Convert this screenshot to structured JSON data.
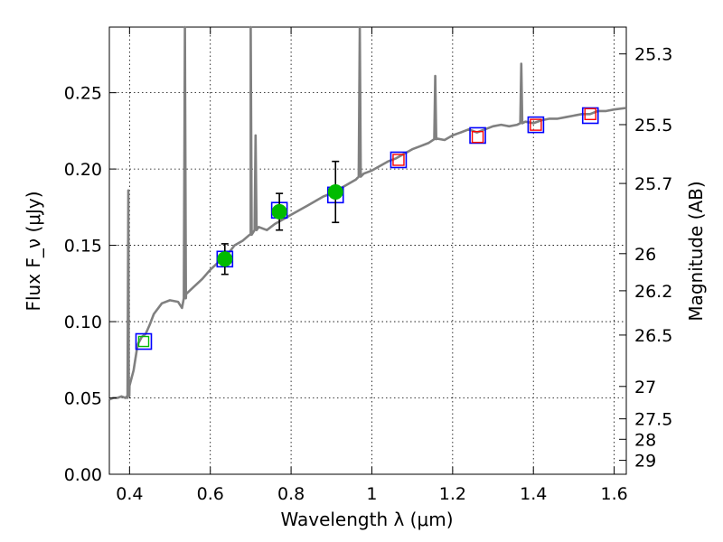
{
  "chart_data": {
    "type": "line",
    "xlabel": "Wavelength λ (μm)",
    "ylabel": "Flux F_ν (μJy)",
    "y2label": "Magnitude (AB)",
    "xlim": [
      0.35,
      1.63
    ],
    "ylim": [
      0.0,
      0.293
    ],
    "grid": true,
    "x_ticks": [
      {
        "v": 0.4,
        "label": "0.4"
      },
      {
        "v": 0.6,
        "label": "0.6"
      },
      {
        "v": 0.8,
        "label": "0.8"
      },
      {
        "v": 1.0,
        "label": "1"
      },
      {
        "v": 1.2,
        "label": "1.2"
      },
      {
        "v": 1.4,
        "label": "1.4"
      },
      {
        "v": 1.6,
        "label": "1.6"
      }
    ],
    "y_ticks": [
      {
        "v": 0.0,
        "label": "0.00"
      },
      {
        "v": 0.05,
        "label": "0.05"
      },
      {
        "v": 0.1,
        "label": "0.10"
      },
      {
        "v": 0.15,
        "label": "0.15"
      },
      {
        "v": 0.2,
        "label": "0.20"
      },
      {
        "v": 0.25,
        "label": "0.25"
      }
    ],
    "y2_ticks": [
      {
        "mag": 25.3,
        "label": "25.3"
      },
      {
        "mag": 25.5,
        "label": "25.5"
      },
      {
        "mag": 25.7,
        "label": "25.7"
      },
      {
        "mag": 26,
        "label": "26"
      },
      {
        "mag": 26.2,
        "label": "26.2"
      },
      {
        "mag": 26.5,
        "label": "26.5"
      },
      {
        "mag": 27,
        "label": "27"
      },
      {
        "mag": 27.5,
        "label": "27.5"
      },
      {
        "mag": 28,
        "label": "28"
      },
      {
        "mag": 29,
        "label": "29"
      }
    ],
    "series": [
      {
        "kind": "model-spectrum",
        "color": "#808080",
        "x": [
          0.35,
          0.36,
          0.37,
          0.38,
          0.39,
          0.395,
          0.398,
          0.4,
          0.41,
          0.42,
          0.43,
          0.44,
          0.45,
          0.46,
          0.48,
          0.5,
          0.52,
          0.53,
          0.54,
          0.56,
          0.58,
          0.6,
          0.62,
          0.64,
          0.66,
          0.68,
          0.7,
          0.72,
          0.74,
          0.76,
          0.78,
          0.8,
          0.82,
          0.84,
          0.86,
          0.88,
          0.9,
          0.92,
          0.94,
          0.96,
          0.98,
          1.0,
          1.02,
          1.04,
          1.06,
          1.08,
          1.1,
          1.12,
          1.14,
          1.16,
          1.18,
          1.2,
          1.22,
          1.24,
          1.26,
          1.28,
          1.3,
          1.32,
          1.34,
          1.36,
          1.38,
          1.4,
          1.42,
          1.44,
          1.46,
          1.48,
          1.5,
          1.52,
          1.54,
          1.56,
          1.58,
          1.6,
          1.63
        ],
        "values": [
          0.049,
          0.05,
          0.05,
          0.051,
          0.05,
          0.05,
          0.052,
          0.058,
          0.068,
          0.085,
          0.09,
          0.092,
          0.098,
          0.105,
          0.112,
          0.114,
          0.113,
          0.109,
          0.118,
          0.123,
          0.128,
          0.134,
          0.139,
          0.143,
          0.15,
          0.153,
          0.157,
          0.162,
          0.16,
          0.164,
          0.167,
          0.17,
          0.173,
          0.176,
          0.179,
          0.182,
          0.184,
          0.187,
          0.19,
          0.193,
          0.197,
          0.199,
          0.202,
          0.205,
          0.207,
          0.21,
          0.213,
          0.215,
          0.217,
          0.22,
          0.219,
          0.222,
          0.224,
          0.226,
          0.224,
          0.226,
          0.228,
          0.229,
          0.228,
          0.229,
          0.231,
          0.23,
          0.232,
          0.233,
          0.233,
          0.234,
          0.235,
          0.236,
          0.236,
          0.238,
          0.238,
          0.239,
          0.24
        ],
        "emission_lines": [
          {
            "x": 0.397,
            "peak": 0.186
          },
          {
            "x": 0.537,
            "peak": 0.293
          },
          {
            "x": 0.7,
            "peak": 0.293
          },
          {
            "x": 0.712,
            "peak": 0.222
          },
          {
            "x": 0.97,
            "peak": 0.293
          },
          {
            "x": 1.157,
            "peak": 0.261
          },
          {
            "x": 1.37,
            "peak": 0.269
          }
        ]
      },
      {
        "kind": "measured-flux",
        "marker": "circle",
        "color": "#00bb00",
        "x": [
          0.636,
          0.771,
          0.91
        ],
        "values": [
          0.141,
          0.172,
          0.185
        ],
        "yerr": [
          0.01,
          0.012,
          0.02
        ]
      },
      {
        "kind": "model-band-flux",
        "marker": "square",
        "color": "#0000ff",
        "x": [
          0.435,
          0.636,
          0.771,
          0.91,
          1.066,
          1.262,
          1.406,
          1.541
        ],
        "values": [
          0.087,
          0.141,
          0.173,
          0.183,
          0.206,
          0.222,
          0.229,
          0.235
        ]
      },
      {
        "kind": "synthetic-band-flux",
        "marker": "square-small",
        "color": "#ff0000",
        "x": [
          1.066,
          1.262,
          1.406,
          1.541
        ],
        "values": [
          0.206,
          0.221,
          0.229,
          0.236
        ]
      },
      {
        "kind": "upper-band-flux",
        "marker": "square-small",
        "color": "#00bb00",
        "x": [
          0.435
        ],
        "values": [
          0.087
        ]
      }
    ]
  }
}
